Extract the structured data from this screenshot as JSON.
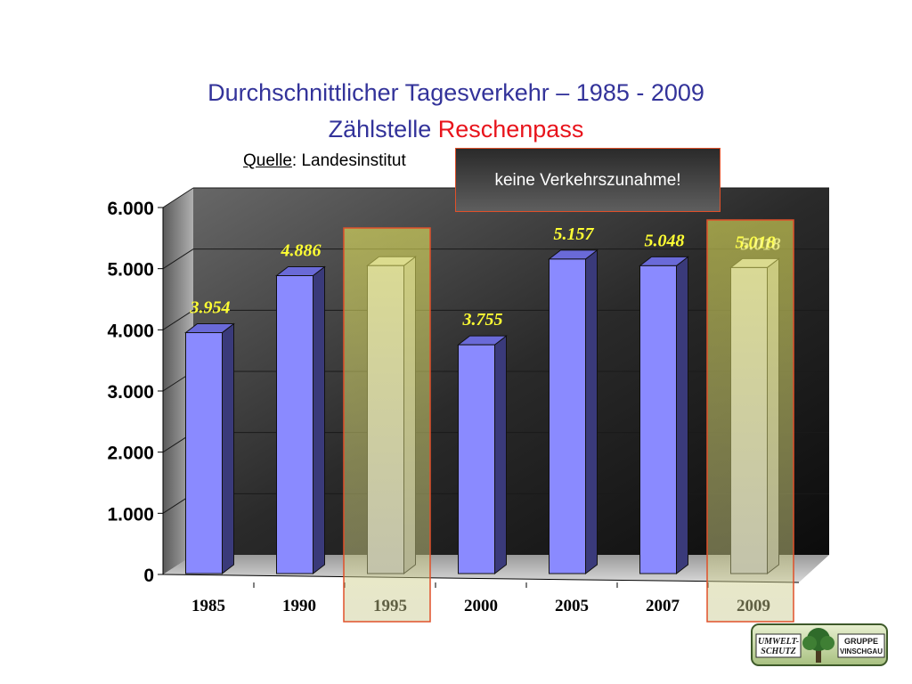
{
  "slide": {
    "title_line1": "Durchschnittlicher Tagesverkehr – 1985 - 2009",
    "title_line2_prefix": "Zählstelle ",
    "title_line2_highlight": "Reschenpass",
    "source_label": "Quelle",
    "source_text": ": Landesinstitut",
    "callout": "keine Verkehrszunahme!",
    "logo": {
      "left_top": "UMWELT-",
      "left_bottom": "SCHUTZ",
      "right_top": "GRUPPE",
      "right_bottom": "VINSCHGAU",
      "icon": "tree-icon"
    }
  },
  "colors": {
    "title": "#33339a",
    "highlight": "#e8141c",
    "bar_front": "#8a8aff",
    "bar_side": "#3a3a7a",
    "data_label": "#ffff33",
    "highlight_box_border": "#e0502a"
  },
  "chart_data": {
    "type": "bar",
    "categories": [
      "1985",
      "1990",
      "1995",
      "2000",
      "2005",
      "2007",
      "2009"
    ],
    "values": [
      3954,
      4886,
      5050,
      3755,
      5157,
      5048,
      5018
    ],
    "data_labels": [
      "3.954",
      "4.886",
      "",
      "3.755",
      "5.157",
      "5.048",
      "5.018"
    ],
    "highlighted_categories": [
      "1995",
      "2009"
    ],
    "y_ticks": [
      "0",
      "1.000",
      "2.000",
      "3.000",
      "4.000",
      "5.000",
      "6.000"
    ],
    "ylim": [
      0,
      6000
    ],
    "title": "Durchschnittlicher Tagesverkehr – 1985 - 2009",
    "xlabel": "",
    "ylabel": "",
    "grid": true,
    "legend": "none"
  }
}
